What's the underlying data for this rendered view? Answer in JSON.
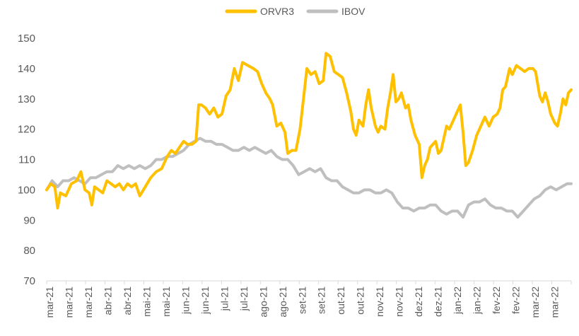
{
  "chart_data": {
    "type": "line",
    "title": "",
    "xlabel": "",
    "ylabel": "",
    "ylim": [
      70,
      150
    ],
    "yticks": [
      70,
      80,
      90,
      100,
      110,
      120,
      130,
      140,
      150
    ],
    "grid": false,
    "legend_position": "top-center",
    "x_tick_labels": [
      "mar-21",
      "mar-21",
      "mar-21",
      "abr-21",
      "abr-21",
      "mai-21",
      "mai-21",
      "jun-21",
      "jun-21",
      "jul-21",
      "jul-21",
      "ago-21",
      "ago-21",
      "set-21",
      "set-21",
      "out-21",
      "out-21",
      "nov-21",
      "nov-21",
      "dez-21",
      "dez-21",
      "jan-22",
      "jan-22",
      "fev-22",
      "fev-22",
      "mar-22",
      "mar-22"
    ],
    "x_index_max": 276,
    "series": [
      {
        "name": "ORVR3",
        "color": "#FFC000",
        "points": [
          [
            0,
            100
          ],
          [
            3,
            102
          ],
          [
            6,
            101
          ],
          [
            8,
            94
          ],
          [
            10,
            99
          ],
          [
            14,
            98
          ],
          [
            18,
            102
          ],
          [
            22,
            103
          ],
          [
            25,
            106
          ],
          [
            28,
            100
          ],
          [
            31,
            99
          ],
          [
            33,
            95
          ],
          [
            35,
            101
          ],
          [
            38,
            100
          ],
          [
            41,
            99
          ],
          [
            44,
            103
          ],
          [
            47,
            102
          ],
          [
            50,
            101
          ],
          [
            53,
            102
          ],
          [
            56,
            100
          ],
          [
            59,
            102
          ],
          [
            62,
            101
          ],
          [
            65,
            102
          ],
          [
            68,
            98
          ],
          [
            72,
            101
          ],
          [
            76,
            104
          ],
          [
            80,
            106
          ],
          [
            84,
            107
          ],
          [
            88,
            111
          ],
          [
            91,
            113
          ],
          [
            94,
            112
          ],
          [
            97,
            114
          ],
          [
            100,
            116
          ],
          [
            103,
            115
          ],
          [
            106,
            115
          ],
          [
            109,
            116
          ],
          [
            111,
            128
          ],
          [
            113,
            128
          ],
          [
            116,
            127
          ],
          [
            119,
            125
          ],
          [
            122,
            127
          ],
          [
            125,
            124
          ],
          [
            128,
            125
          ],
          [
            131,
            131
          ],
          [
            134,
            133
          ],
          [
            137,
            140
          ],
          [
            140,
            136
          ],
          [
            143,
            142
          ],
          [
            147,
            141
          ],
          [
            151,
            140
          ],
          [
            154,
            139
          ],
          [
            157,
            135
          ],
          [
            160,
            132
          ],
          [
            163,
            130
          ],
          [
            165,
            128
          ],
          [
            168,
            121
          ],
          [
            171,
            122
          ],
          [
            174,
            119
          ],
          [
            176,
            112
          ],
          [
            179,
            113
          ],
          [
            182,
            113
          ],
          [
            185,
            120
          ],
          [
            187,
            128
          ],
          [
            190,
            140
          ],
          [
            193,
            138
          ],
          [
            196,
            139
          ],
          [
            199,
            135
          ],
          [
            202,
            136
          ],
          [
            204,
            145
          ],
          [
            207,
            144
          ],
          [
            210,
            139
          ],
          [
            213,
            138
          ],
          [
            216,
            137
          ],
          [
            219,
            132
          ],
          [
            222,
            126
          ],
          [
            224,
            120
          ],
          [
            226,
            118
          ],
          [
            228,
            123
          ],
          [
            231,
            121
          ],
          [
            233,
            128
          ],
          [
            235,
            133
          ],
          [
            237,
            127
          ],
          [
            240,
            121
          ],
          [
            242,
            119
          ],
          [
            244,
            121
          ],
          [
            247,
            120
          ],
          [
            249,
            127
          ],
          [
            251,
            132
          ],
          [
            253,
            138
          ],
          [
            255,
            129
          ],
          [
            257,
            130
          ],
          [
            259,
            132
          ],
          [
            262,
            127
          ],
          [
            264,
            128
          ],
          [
            266,
            123
          ],
          [
            269,
            118
          ],
          [
            272,
            115
          ],
          [
            274,
            104
          ],
          [
            276,
            108
          ],
          [
            278,
            110
          ],
          [
            280,
            114
          ],
          [
            282,
            115
          ],
          [
            284,
            116
          ],
          [
            286,
            112
          ],
          [
            288,
            113
          ],
          [
            290,
            117
          ],
          [
            292,
            121
          ],
          [
            294,
            120
          ],
          [
            297,
            123
          ],
          [
            300,
            126
          ],
          [
            302,
            128
          ],
          [
            304,
            119
          ],
          [
            306,
            108
          ],
          [
            308,
            109
          ],
          [
            311,
            113
          ],
          [
            314,
            118
          ],
          [
            317,
            121
          ],
          [
            320,
            124
          ],
          [
            323,
            121
          ],
          [
            326,
            124
          ],
          [
            329,
            125
          ],
          [
            331,
            127
          ],
          [
            333,
            133
          ],
          [
            335,
            134
          ],
          [
            338,
            140
          ],
          [
            340,
            138
          ],
          [
            343,
            141
          ],
          [
            346,
            140
          ],
          [
            349,
            139
          ],
          [
            352,
            140
          ],
          [
            355,
            140
          ],
          [
            357,
            139
          ],
          [
            360,
            131
          ],
          [
            362,
            129
          ],
          [
            364,
            132
          ],
          [
            366,
            129
          ],
          [
            368,
            125
          ],
          [
            371,
            122
          ],
          [
            373,
            121
          ],
          [
            375,
            125
          ],
          [
            377,
            130
          ],
          [
            379,
            128
          ],
          [
            381,
            132
          ],
          [
            383,
            133
          ]
        ]
      },
      {
        "name": "IBOV",
        "color": "#BFBFBF",
        "points": [
          [
            0,
            100
          ],
          [
            4,
            103
          ],
          [
            8,
            101
          ],
          [
            12,
            103
          ],
          [
            16,
            103
          ],
          [
            20,
            104
          ],
          [
            24,
            103
          ],
          [
            28,
            102
          ],
          [
            32,
            104
          ],
          [
            36,
            104
          ],
          [
            40,
            105
          ],
          [
            44,
            106
          ],
          [
            48,
            106
          ],
          [
            52,
            108
          ],
          [
            56,
            107
          ],
          [
            60,
            108
          ],
          [
            64,
            107
          ],
          [
            68,
            108
          ],
          [
            72,
            107
          ],
          [
            76,
            108
          ],
          [
            80,
            110
          ],
          [
            84,
            110
          ],
          [
            88,
            111
          ],
          [
            92,
            111
          ],
          [
            96,
            112
          ],
          [
            100,
            113
          ],
          [
            104,
            115
          ],
          [
            108,
            116
          ],
          [
            112,
            117
          ],
          [
            116,
            116
          ],
          [
            120,
            116
          ],
          [
            124,
            115
          ],
          [
            128,
            115
          ],
          [
            132,
            114
          ],
          [
            136,
            113
          ],
          [
            140,
            113
          ],
          [
            144,
            114
          ],
          [
            148,
            113
          ],
          [
            152,
            114
          ],
          [
            156,
            113
          ],
          [
            160,
            112
          ],
          [
            164,
            113
          ],
          [
            168,
            111
          ],
          [
            172,
            110
          ],
          [
            176,
            110
          ],
          [
            180,
            108
          ],
          [
            184,
            105
          ],
          [
            188,
            106
          ],
          [
            192,
            107
          ],
          [
            196,
            106
          ],
          [
            200,
            107
          ],
          [
            204,
            104
          ],
          [
            208,
            103
          ],
          [
            212,
            103
          ],
          [
            216,
            101
          ],
          [
            220,
            100
          ],
          [
            224,
            99
          ],
          [
            228,
            99
          ],
          [
            232,
            100
          ],
          [
            236,
            100
          ],
          [
            240,
            99
          ],
          [
            244,
            99
          ],
          [
            248,
            100
          ],
          [
            252,
            99
          ],
          [
            256,
            96
          ],
          [
            260,
            94
          ],
          [
            264,
            94
          ],
          [
            268,
            93
          ],
          [
            272,
            94
          ],
          [
            276,
            94
          ],
          [
            280,
            95
          ],
          [
            284,
            95
          ],
          [
            288,
            93
          ],
          [
            292,
            92
          ],
          [
            296,
            93
          ],
          [
            300,
            93
          ],
          [
            304,
            91
          ],
          [
            308,
            95
          ],
          [
            312,
            96
          ],
          [
            316,
            96
          ],
          [
            320,
            97
          ],
          [
            324,
            95
          ],
          [
            328,
            94
          ],
          [
            332,
            94
          ],
          [
            336,
            93
          ],
          [
            340,
            93
          ],
          [
            344,
            91
          ],
          [
            348,
            93
          ],
          [
            352,
            95
          ],
          [
            356,
            97
          ],
          [
            360,
            98
          ],
          [
            364,
            100
          ],
          [
            368,
            101
          ],
          [
            372,
            100
          ],
          [
            376,
            101
          ],
          [
            380,
            102
          ],
          [
            383,
            102
          ]
        ]
      }
    ]
  }
}
